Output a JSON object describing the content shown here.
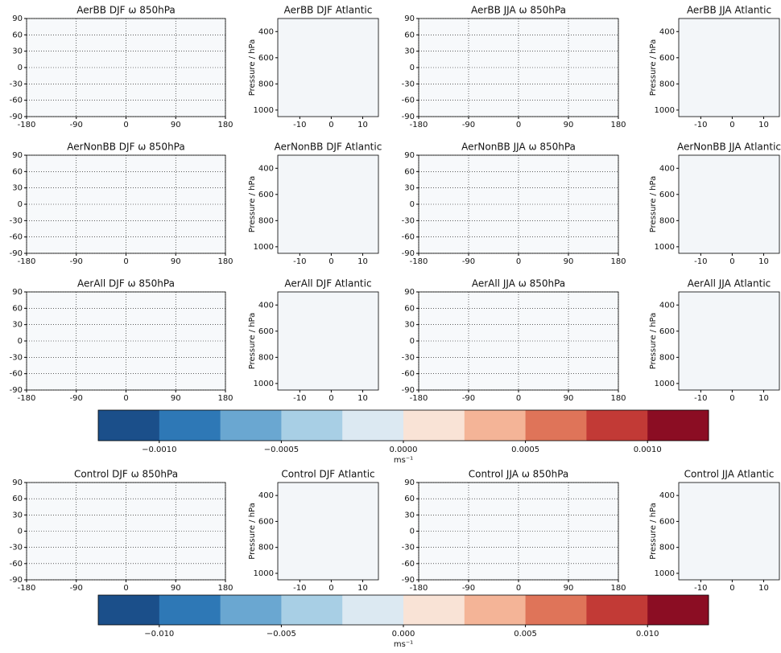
{
  "map_axes": {
    "xlim": [
      -180,
      180
    ],
    "ylim": [
      -90,
      90
    ],
    "xticks": [
      -180,
      -90,
      0,
      90,
      180
    ],
    "yticks": [
      -90,
      -60,
      -30,
      0,
      30,
      60,
      90
    ],
    "grid": true
  },
  "section_axes": {
    "xlim": [
      -17,
      15
    ],
    "ylim": [
      1050,
      300
    ],
    "xticks": [
      -10,
      0,
      10
    ],
    "yticks": [
      400,
      600,
      800,
      1000
    ],
    "ylabel": "Pressure / hPa"
  },
  "panels": [
    {
      "type": "map",
      "title": "AerBB DJF ω 850hPa"
    },
    {
      "type": "section",
      "title": "AerBB DJF Atlantic"
    },
    {
      "type": "map",
      "title": "AerBB JJA ω 850hPa"
    },
    {
      "type": "section",
      "title": "AerBB JJA Atlantic"
    },
    {
      "type": "map",
      "title": "AerNonBB DJF ω 850hPa"
    },
    {
      "type": "section",
      "title": "AerNonBB DJF Atlantic"
    },
    {
      "type": "map",
      "title": "AerNonBB JJA ω 850hPa"
    },
    {
      "type": "section",
      "title": "AerNonBB JJA Atlantic"
    },
    {
      "type": "map",
      "title": "AerAll DJF ω 850hPa"
    },
    {
      "type": "section",
      "title": "AerAll DJF Atlantic"
    },
    {
      "type": "map",
      "title": "AerAll JJA ω 850hPa"
    },
    {
      "type": "section",
      "title": "AerAll JJA Atlantic"
    },
    {
      "type": "map",
      "title": "Control DJF ω 850hPa"
    },
    {
      "type": "section",
      "title": "Control DJF Atlantic"
    },
    {
      "type": "map",
      "title": "Control JJA ω 850hPa"
    },
    {
      "type": "section",
      "title": "Control JJA Atlantic"
    }
  ],
  "colorbars": [
    {
      "label": "ms⁻¹",
      "lim": [
        -0.00125,
        0.00125
      ],
      "ticks": [
        {
          "value": -0.001,
          "label": "−0.0010"
        },
        {
          "value": -0.0005,
          "label": "−0.0005"
        },
        {
          "value": 0,
          "label": "0.0000"
        },
        {
          "value": 0.0005,
          "label": "0.0005"
        },
        {
          "value": 0.001,
          "label": "0.0010"
        }
      ]
    },
    {
      "label": "ms⁻¹",
      "lim": [
        -0.0125,
        0.0125
      ],
      "ticks": [
        {
          "value": -0.01,
          "label": "−0.010"
        },
        {
          "value": -0.005,
          "label": "−0.005"
        },
        {
          "value": 0,
          "label": "0.000"
        },
        {
          "value": 0.005,
          "label": "0.005"
        },
        {
          "value": 0.01,
          "label": "0.010"
        }
      ]
    }
  ],
  "colors": [
    "#1b4f8a",
    "#2e78b6",
    "#6aa7d1",
    "#a8cfe5",
    "#dce9f2",
    "#f9e3d6",
    "#f4b497",
    "#df7459",
    "#c23a36",
    "#8b0d23"
  ]
}
